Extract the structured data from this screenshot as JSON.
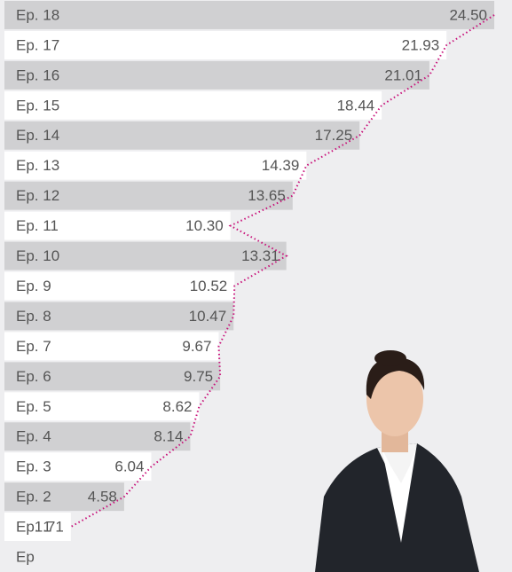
{
  "chart_data": {
    "type": "bar",
    "categories": [
      "Ep. 18",
      "Ep. 17",
      "Ep. 16",
      "Ep. 15",
      "Ep. 14",
      "Ep. 13",
      "Ep. 12",
      "Ep. 11",
      "Ep. 10",
      "Ep. 9",
      "Ep. 8",
      "Ep. 7",
      "Ep. 6",
      "Ep. 5",
      "Ep. 4",
      "Ep. 3",
      "Ep. 2",
      "Ep. 1",
      "Ep"
    ],
    "values": [
      24.5,
      21.93,
      21.01,
      18.44,
      17.25,
      14.39,
      13.65,
      10.3,
      13.31,
      10.52,
      10.47,
      9.67,
      9.75,
      8.62,
      8.14,
      6.04,
      4.58,
      1.71,
      null
    ],
    "value_labels": [
      "24.50",
      "21.93",
      "21.01",
      "18.44",
      "17.25",
      "14.39",
      "13.65",
      "10.30",
      "13.31",
      "10.52",
      "10.47",
      "9.67",
      "9.75",
      "8.62",
      "8.14",
      "6.04",
      "4.58",
      "1.71",
      null
    ],
    "colors": [
      "#d0d0d2",
      "#ffffff"
    ],
    "line_color": "#c8127a"
  }
}
